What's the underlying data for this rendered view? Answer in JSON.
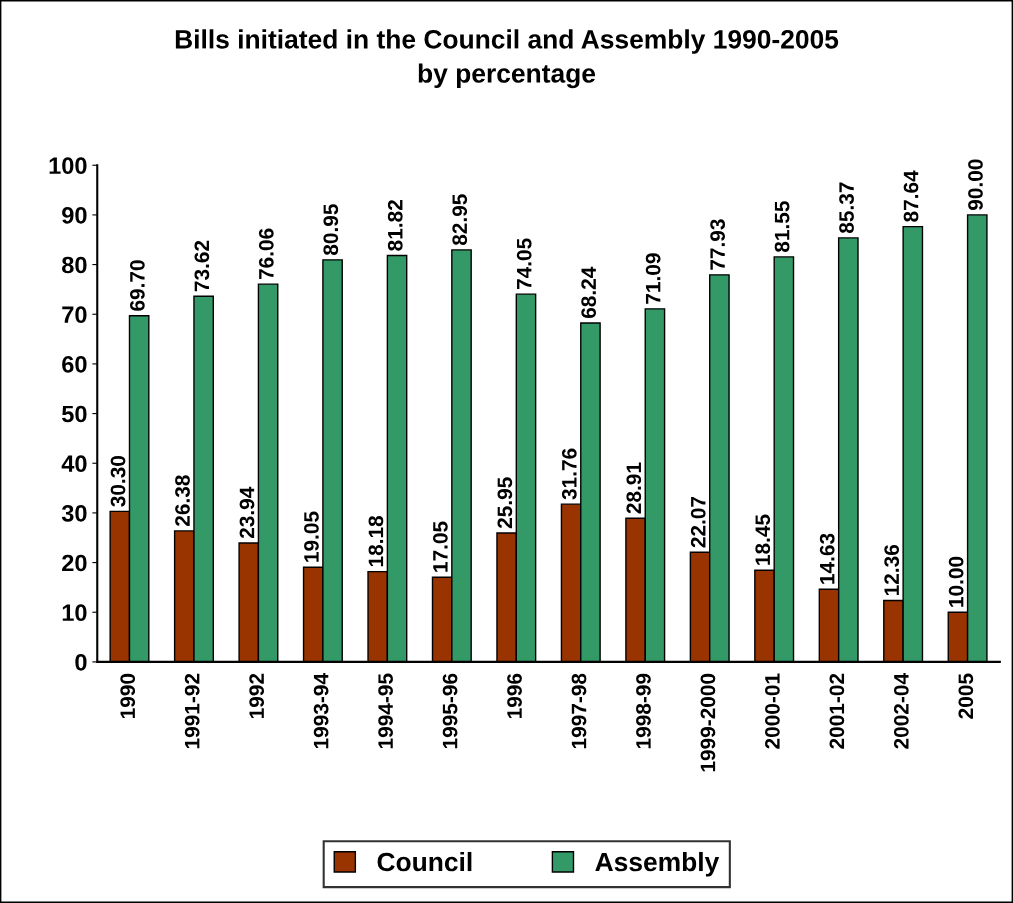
{
  "chart_data": {
    "type": "bar",
    "title": "Bills initiated in the Council and Assembly 1990-2005\nby percentage",
    "categories": [
      "1990",
      "1991-92",
      "1992",
      "1993-94",
      "1994-95",
      "1995-96",
      "1996",
      "1997-98",
      "1998-99",
      "1999-2000",
      "2000-01",
      "2001-02",
      "2002-04",
      "2005"
    ],
    "series": [
      {
        "name": "Council",
        "color": "#993300",
        "values": [
          30.3,
          26.38,
          23.94,
          19.05,
          18.18,
          17.05,
          25.95,
          31.76,
          28.91,
          22.07,
          18.45,
          14.63,
          12.36,
          10.0
        ],
        "value_labels": [
          "30.30",
          "26.38",
          "23.94",
          "19.05",
          "18.18",
          "17.05",
          "25.95",
          "31.76",
          "28.91",
          "22.07",
          "18.45",
          "14.63",
          "12.36",
          "10.00"
        ]
      },
      {
        "name": "Assembly",
        "color": "#339966",
        "values": [
          69.7,
          73.62,
          76.06,
          80.95,
          81.82,
          82.95,
          74.05,
          68.24,
          71.09,
          77.93,
          81.55,
          85.37,
          87.64,
          90.0
        ],
        "value_labels": [
          "69.70",
          "73.62",
          "76.06",
          "80.95",
          "81.82",
          "82.95",
          "74.05",
          "68.24",
          "71.09",
          "77.93",
          "81.55",
          "85.37",
          "87.64",
          "90.00"
        ]
      }
    ],
    "ylim": [
      0,
      100
    ],
    "yticks": [
      0,
      10,
      20,
      30,
      40,
      50,
      60,
      70,
      80,
      90,
      100
    ],
    "grid": false,
    "legend": "bottom"
  }
}
